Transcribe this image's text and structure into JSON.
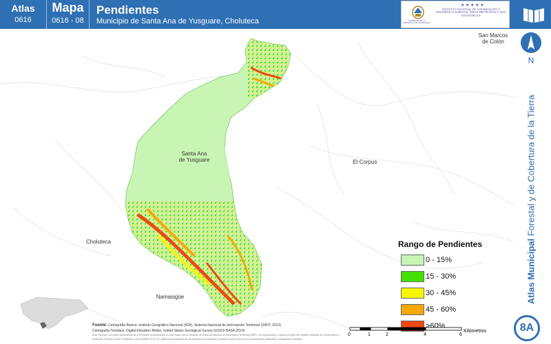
{
  "header": {
    "atlas_label": "Atlas",
    "atlas_number": "0616",
    "mapa_label": "Mapa",
    "mapa_number": "0616 - 08",
    "title": "Pendientes",
    "subtitle": "Municipio de Santa Ana de Yusguare, Choluteca",
    "logo_left_text": "GOBIERNO DE LA REPÚBLICA DE HONDURAS",
    "logo_right_text": "INSTITUTO NACIONAL DE CONSERVACIÓN Y DESARROLLO FORESTAL ÁREAS PROTEGIDAS Y VIDA SILVESTRE ICF",
    "book_icon": "open-book-icon"
  },
  "map": {
    "places": {
      "santa_ana": "Santa Ana\nde Yusguare",
      "el_corpus": "El Corpus",
      "choluteca": "Choluteca",
      "namasigue": "Namasigüe",
      "san_marcos": "San Marcos\nde Colón"
    }
  },
  "side": {
    "north_letter": "N",
    "series_title_bold": "Atlas Municipal",
    "series_title_rest": " Forestal y de Cobertura de la Tierra",
    "badge": "8A"
  },
  "legend": {
    "title": "Rango de Pendientes",
    "items": [
      {
        "label": "0 - 15%",
        "color": "#c8f5b4"
      },
      {
        "label": "15 - 30%",
        "color": "#44e000"
      },
      {
        "label": "30 - 45%",
        "color": "#f6f600"
      },
      {
        "label": "45 - 60%",
        "color": "#f6a800"
      },
      {
        "label": ">60%",
        "color": "#f04810"
      }
    ]
  },
  "footer": {
    "fuente_label": "Fuente:",
    "fuente_line1": "Cartografía Básica: Instituto Geográfico Nacional (IGN), Sistema Nacional de Información Territorial (SINIT, 2013)",
    "fuente_line2": "Cartografía Temática: Digital Elevation Model, United States Geological Survey (USGS-NASA,2014)",
    "note": "Nota Técnica: Los límites administrativos y forestales representados en este mapa, fueron tomados del Sistema Nacional de Información Territorial (SINIT). Su reproducción o ajuste por parte del Instituto Nacional de Conservación y Desarrollo Forestal, Áreas Protegidas y Vida Silvestre (ICF), no significa la aceptación de los mismos en la ubicación y precisión que se tiene en los documentos catastrales y cartográficos oficiales.",
    "scale_ticks": [
      "0",
      "1",
      "2",
      "4",
      "6"
    ],
    "scale_unit": "Kilómetros"
  }
}
